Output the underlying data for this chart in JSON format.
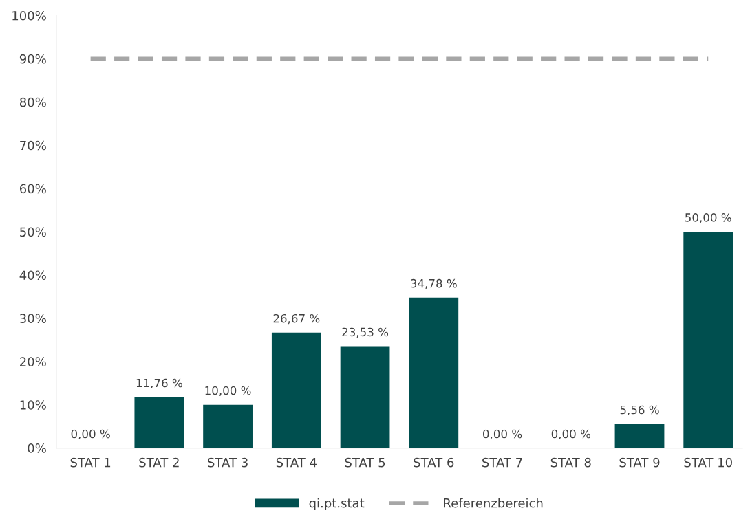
{
  "chart_data": {
    "type": "bar",
    "categories": [
      "STAT 1",
      "STAT 2",
      "STAT 3",
      "STAT 4",
      "STAT 5",
      "STAT 6",
      "STAT 7",
      "STAT 8",
      "STAT 9",
      "STAT 10"
    ],
    "series": [
      {
        "name": "qi.pt.stat",
        "color": "#004f4f",
        "values": [
          0,
          11.76,
          10,
          26.67,
          23.53,
          34.78,
          0,
          0,
          5.56,
          50
        ],
        "value_labels": [
          "0,00 %",
          "11,76 %",
          "10,00 %",
          "26,67 %",
          "23,53 %",
          "34,78 %",
          "0,00 %",
          "0,00 %",
          "5,56 %",
          "50,00 %"
        ]
      },
      {
        "name": "Referenzbereich",
        "type": "line",
        "color": "#a6a6a6",
        "line_style": "dashed",
        "values": [
          90,
          90,
          90,
          90,
          90,
          90,
          90,
          90,
          90,
          90
        ]
      }
    ],
    "ylim": [
      0,
      100
    ],
    "yticks": [
      {
        "value": 0,
        "label": "0%"
      },
      {
        "value": 10,
        "label": "10%"
      },
      {
        "value": 20,
        "label": "20%"
      },
      {
        "value": 30,
        "label": "30%"
      },
      {
        "value": 40,
        "label": "40%"
      },
      {
        "value": 50,
        "label": "50%"
      },
      {
        "value": 60,
        "label": "60%"
      },
      {
        "value": 70,
        "label": "70%"
      },
      {
        "value": 80,
        "label": "80%"
      },
      {
        "value": 90,
        "label": "90%"
      },
      {
        "value": 100,
        "label": "100%"
      }
    ],
    "grid": false,
    "legend": "bottom"
  }
}
